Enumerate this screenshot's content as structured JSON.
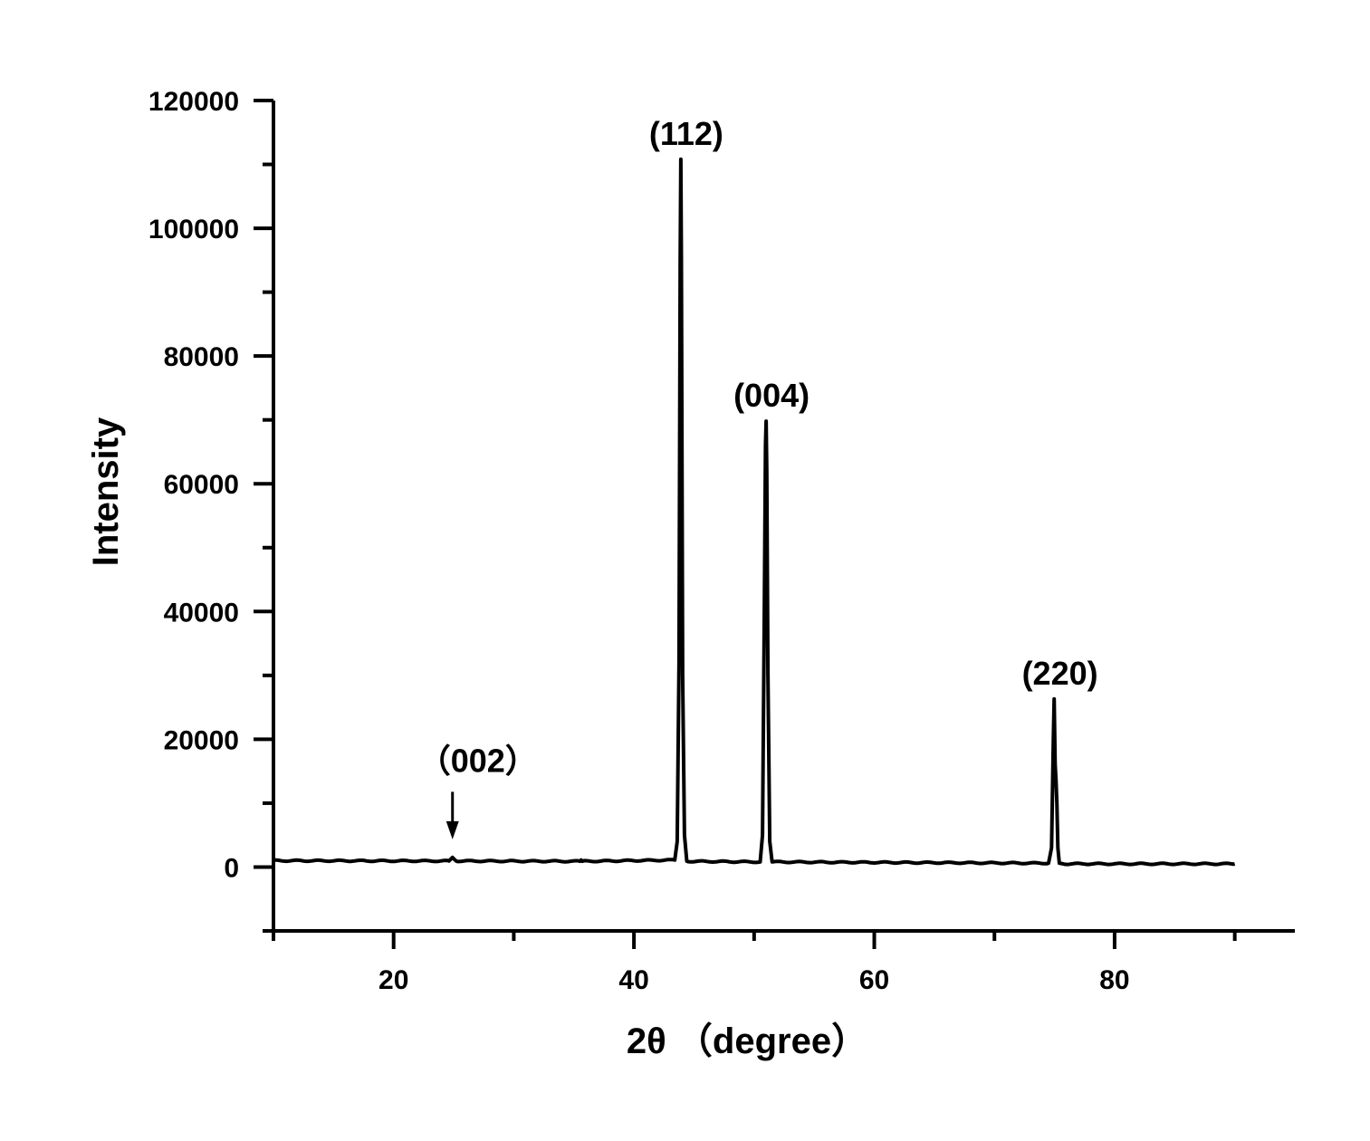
{
  "chart_data": {
    "type": "line",
    "title": "",
    "xlabel": "2θ （degree）",
    "ylabel": "Intensity",
    "xlim": [
      10,
      95
    ],
    "ylim": [
      -10000,
      120000
    ],
    "x_ticks": [
      20,
      40,
      60,
      80
    ],
    "x_minor_ticks": [
      10,
      30,
      50,
      70,
      90
    ],
    "y_ticks": [
      0,
      20000,
      40000,
      60000,
      80000,
      100000,
      120000
    ],
    "y_minor_ticks": [
      -10000,
      10000,
      30000,
      50000,
      70000,
      90000,
      110000
    ],
    "grid": false,
    "legend": "none",
    "line_color": "#000000",
    "baseline": {
      "x_start": 10,
      "y_start": 1000,
      "x_end": 90,
      "y_end": 500
    },
    "peaks": [
      {
        "label": "（002）",
        "x": 24.9,
        "intensity": 1500,
        "arrow": true
      },
      {
        "label": "(112)",
        "x": 43.9,
        "intensity": 110800
      },
      {
        "label": "(004)",
        "x": 51.0,
        "intensity": 69800
      },
      {
        "label": "(220)",
        "x": 75.0,
        "intensity": 26300
      }
    ],
    "series": [
      {
        "x": [
          10,
          24.6,
          24.9,
          25.2,
          35.5,
          35.6,
          35.7,
          43.4,
          43.6,
          43.75,
          43.85,
          43.9,
          43.95,
          44.05,
          44.2,
          44.4,
          50.5,
          50.7,
          50.85,
          50.95,
          51.0,
          51.05,
          51.15,
          51.3,
          51.5,
          74.5,
          74.75,
          74.9,
          74.97,
          75.05,
          75.12,
          75.2,
          75.28,
          75.4,
          75.7,
          90
        ],
        "y": [
          1000,
          950,
          1500,
          950,
          900,
          1100,
          900,
          1100,
          4000,
          32000,
          95000,
          110800,
          95000,
          30000,
          5000,
          900,
          800,
          5000,
          40000,
          66000,
          69800,
          62000,
          30000,
          4000,
          800,
          600,
          3000,
          20000,
          26300,
          16000,
          13700,
          10000,
          3000,
          600,
          500,
          500
        ]
      }
    ]
  }
}
